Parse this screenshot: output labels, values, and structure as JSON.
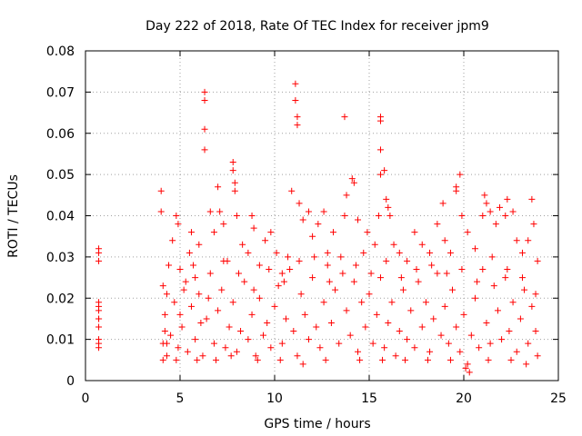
{
  "chart_data": {
    "type": "scatter",
    "title": "Day 222 of 2018, Rate Of TEC Index for receiver jpm9",
    "xlabel": "GPS time / hours",
    "ylabel": "ROTI / TECUs",
    "xlim": [
      0,
      25
    ],
    "ylim": [
      0,
      0.08
    ],
    "x_ticks": [
      0,
      5,
      10,
      15,
      20,
      25
    ],
    "x_tick_labels": [
      "0",
      "5",
      "10",
      "15",
      "20",
      "25"
    ],
    "y_ticks": [
      0,
      0.01,
      0.02,
      0.03,
      0.04,
      0.05,
      0.06,
      0.07,
      0.08
    ],
    "y_tick_labels": [
      "0",
      "0.01",
      "0.02",
      "0.03",
      "0.04",
      "0.05",
      "0.06",
      "0.07",
      "0.08"
    ],
    "grid": true,
    "marker": "+",
    "color": "#ff0000",
    "series": [
      {
        "name": "ROTI",
        "points": [
          [
            0.7,
            0.032
          ],
          [
            0.7,
            0.031
          ],
          [
            0.7,
            0.029
          ],
          [
            0.7,
            0.019
          ],
          [
            0.7,
            0.018
          ],
          [
            0.7,
            0.017
          ],
          [
            0.7,
            0.015
          ],
          [
            0.7,
            0.015
          ],
          [
            0.7,
            0.013
          ],
          [
            0.7,
            0.01
          ],
          [
            0.7,
            0.009
          ],
          [
            0.7,
            0.008
          ],
          [
            4.0,
            0.046
          ],
          [
            4.0,
            0.041
          ],
          [
            4.1,
            0.023
          ],
          [
            4.2,
            0.012
          ],
          [
            4.3,
            0.009
          ],
          [
            4.4,
            0.028
          ],
          [
            4.6,
            0.034
          ],
          [
            4.8,
            0.04
          ],
          [
            4.9,
            0.038
          ],
          [
            5.0,
            0.027
          ],
          [
            5.2,
            0.022
          ],
          [
            5.5,
            0.031
          ],
          [
            5.6,
            0.036
          ],
          [
            5.8,
            0.025
          ],
          [
            6.0,
            0.033
          ],
          [
            6.1,
            0.014
          ],
          [
            6.3,
            0.07
          ],
          [
            6.3,
            0.068
          ],
          [
            6.3,
            0.061
          ],
          [
            6.3,
            0.056
          ],
          [
            6.6,
            0.041
          ],
          [
            6.8,
            0.036
          ],
          [
            7.0,
            0.047
          ],
          [
            7.1,
            0.041
          ],
          [
            7.3,
            0.038
          ],
          [
            7.5,
            0.029
          ],
          [
            7.8,
            0.053
          ],
          [
            7.8,
            0.051
          ],
          [
            7.9,
            0.048
          ],
          [
            7.9,
            0.046
          ],
          [
            8.0,
            0.04
          ],
          [
            8.3,
            0.033
          ],
          [
            8.6,
            0.031
          ],
          [
            8.8,
            0.04
          ],
          [
            8.9,
            0.037
          ],
          [
            9.2,
            0.028
          ],
          [
            9.5,
            0.034
          ],
          [
            9.8,
            0.036
          ],
          [
            10.1,
            0.031
          ],
          [
            10.4,
            0.026
          ],
          [
            10.7,
            0.03
          ],
          [
            10.9,
            0.046
          ],
          [
            11.1,
            0.072
          ],
          [
            11.1,
            0.068
          ],
          [
            11.2,
            0.064
          ],
          [
            11.2,
            0.062
          ],
          [
            11.3,
            0.043
          ],
          [
            11.5,
            0.039
          ],
          [
            11.8,
            0.041
          ],
          [
            12.0,
            0.035
          ],
          [
            12.3,
            0.038
          ],
          [
            12.6,
            0.041
          ],
          [
            12.8,
            0.031
          ],
          [
            13.1,
            0.036
          ],
          [
            13.7,
            0.064
          ],
          [
            13.8,
            0.045
          ],
          [
            13.7,
            0.04
          ],
          [
            14.1,
            0.049
          ],
          [
            14.2,
            0.048
          ],
          [
            14.4,
            0.039
          ],
          [
            14.7,
            0.031
          ],
          [
            14.9,
            0.036
          ],
          [
            15.3,
            0.033
          ],
          [
            15.5,
            0.04
          ],
          [
            15.6,
            0.064
          ],
          [
            15.6,
            0.063
          ],
          [
            15.6,
            0.056
          ],
          [
            15.6,
            0.05
          ],
          [
            15.8,
            0.051
          ],
          [
            15.9,
            0.044
          ],
          [
            16.0,
            0.042
          ],
          [
            16.1,
            0.04
          ],
          [
            16.3,
            0.033
          ],
          [
            16.6,
            0.031
          ],
          [
            17.0,
            0.029
          ],
          [
            17.4,
            0.036
          ],
          [
            17.8,
            0.033
          ],
          [
            18.2,
            0.031
          ],
          [
            18.6,
            0.038
          ],
          [
            18.9,
            0.043
          ],
          [
            19.0,
            0.034
          ],
          [
            19.3,
            0.031
          ],
          [
            19.6,
            0.047
          ],
          [
            19.6,
            0.046
          ],
          [
            19.8,
            0.05
          ],
          [
            19.9,
            0.04
          ],
          [
            20.2,
            0.036
          ],
          [
            20.6,
            0.032
          ],
          [
            21.0,
            0.04
          ],
          [
            21.1,
            0.045
          ],
          [
            21.2,
            0.043
          ],
          [
            21.4,
            0.041
          ],
          [
            21.7,
            0.038
          ],
          [
            21.9,
            0.042
          ],
          [
            22.2,
            0.04
          ],
          [
            22.3,
            0.044
          ],
          [
            22.6,
            0.041
          ],
          [
            22.8,
            0.034
          ],
          [
            23.1,
            0.031
          ],
          [
            23.4,
            0.034
          ],
          [
            23.6,
            0.044
          ],
          [
            23.7,
            0.038
          ],
          [
            23.9,
            0.029
          ],
          [
            4.1,
            0.009
          ],
          [
            4.2,
            0.016
          ],
          [
            4.3,
            0.006
          ],
          [
            4.5,
            0.011
          ],
          [
            4.7,
            0.019
          ],
          [
            4.9,
            0.008
          ],
          [
            5.1,
            0.013
          ],
          [
            5.3,
            0.024
          ],
          [
            5.4,
            0.007
          ],
          [
            5.6,
            0.018
          ],
          [
            5.8,
            0.01
          ],
          [
            6.0,
            0.021
          ],
          [
            6.2,
            0.006
          ],
          [
            6.4,
            0.015
          ],
          [
            6.6,
            0.026
          ],
          [
            6.8,
            0.009
          ],
          [
            7.0,
            0.017
          ],
          [
            7.2,
            0.022
          ],
          [
            7.4,
            0.008
          ],
          [
            7.6,
            0.013
          ],
          [
            7.8,
            0.019
          ],
          [
            8.0,
            0.007
          ],
          [
            8.2,
            0.012
          ],
          [
            8.4,
            0.024
          ],
          [
            8.6,
            0.01
          ],
          [
            8.8,
            0.016
          ],
          [
            9.0,
            0.006
          ],
          [
            9.2,
            0.02
          ],
          [
            9.4,
            0.011
          ],
          [
            9.6,
            0.014
          ],
          [
            9.8,
            0.008
          ],
          [
            10.0,
            0.018
          ],
          [
            10.2,
            0.023
          ],
          [
            10.4,
            0.009
          ],
          [
            10.6,
            0.015
          ],
          [
            10.8,
            0.027
          ],
          [
            11.0,
            0.012
          ],
          [
            11.2,
            0.006
          ],
          [
            11.4,
            0.021
          ],
          [
            11.6,
            0.016
          ],
          [
            11.8,
            0.01
          ],
          [
            12.0,
            0.025
          ],
          [
            12.2,
            0.013
          ],
          [
            12.4,
            0.008
          ],
          [
            12.6,
            0.019
          ],
          [
            12.8,
            0.028
          ],
          [
            13.0,
            0.014
          ],
          [
            13.2,
            0.022
          ],
          [
            13.4,
            0.009
          ],
          [
            13.6,
            0.026
          ],
          [
            13.8,
            0.017
          ],
          [
            14.0,
            0.011
          ],
          [
            14.2,
            0.024
          ],
          [
            14.4,
            0.007
          ],
          [
            14.6,
            0.019
          ],
          [
            14.8,
            0.013
          ],
          [
            15.0,
            0.021
          ],
          [
            15.2,
            0.009
          ],
          [
            15.4,
            0.016
          ],
          [
            15.6,
            0.025
          ],
          [
            15.8,
            0.008
          ],
          [
            16.0,
            0.014
          ],
          [
            16.2,
            0.019
          ],
          [
            16.4,
            0.006
          ],
          [
            16.6,
            0.012
          ],
          [
            16.8,
            0.022
          ],
          [
            17.0,
            0.01
          ],
          [
            17.2,
            0.017
          ],
          [
            17.4,
            0.008
          ],
          [
            17.6,
            0.024
          ],
          [
            17.8,
            0.013
          ],
          [
            18.0,
            0.019
          ],
          [
            18.2,
            0.007
          ],
          [
            18.4,
            0.015
          ],
          [
            18.6,
            0.026
          ],
          [
            18.8,
            0.011
          ],
          [
            19.0,
            0.018
          ],
          [
            19.2,
            0.009
          ],
          [
            19.4,
            0.022
          ],
          [
            19.6,
            0.013
          ],
          [
            19.8,
            0.007
          ],
          [
            20.0,
            0.016
          ],
          [
            20.2,
            0.004
          ],
          [
            20.4,
            0.011
          ],
          [
            20.6,
            0.02
          ],
          [
            20.8,
            0.008
          ],
          [
            21.0,
            0.027
          ],
          [
            21.2,
            0.014
          ],
          [
            21.4,
            0.009
          ],
          [
            21.6,
            0.023
          ],
          [
            21.8,
            0.017
          ],
          [
            22.0,
            0.01
          ],
          [
            22.2,
            0.025
          ],
          [
            22.4,
            0.012
          ],
          [
            22.6,
            0.019
          ],
          [
            22.8,
            0.007
          ],
          [
            23.0,
            0.015
          ],
          [
            23.2,
            0.022
          ],
          [
            23.4,
            0.009
          ],
          [
            23.6,
            0.018
          ],
          [
            23.8,
            0.012
          ],
          [
            23.9,
            0.006
          ],
          [
            4.3,
            0.021
          ],
          [
            5.0,
            0.016
          ],
          [
            5.7,
            0.028
          ],
          [
            6.5,
            0.02
          ],
          [
            7.3,
            0.029
          ],
          [
            8.1,
            0.026
          ],
          [
            8.9,
            0.022
          ],
          [
            9.7,
            0.027
          ],
          [
            10.5,
            0.024
          ],
          [
            11.3,
            0.029
          ],
          [
            12.1,
            0.03
          ],
          [
            12.9,
            0.024
          ],
          [
            13.5,
            0.03
          ],
          [
            14.3,
            0.028
          ],
          [
            15.1,
            0.026
          ],
          [
            15.9,
            0.029
          ],
          [
            16.7,
            0.025
          ],
          [
            17.5,
            0.027
          ],
          [
            18.3,
            0.028
          ],
          [
            19.1,
            0.026
          ],
          [
            19.9,
            0.027
          ],
          [
            20.7,
            0.024
          ],
          [
            21.5,
            0.03
          ],
          [
            22.3,
            0.027
          ],
          [
            23.1,
            0.025
          ],
          [
            23.8,
            0.021
          ],
          [
            4.1,
            0.005
          ],
          [
            4.8,
            0.005
          ],
          [
            5.9,
            0.005
          ],
          [
            6.9,
            0.005
          ],
          [
            7.7,
            0.006
          ],
          [
            9.1,
            0.005
          ],
          [
            10.3,
            0.005
          ],
          [
            11.5,
            0.004
          ],
          [
            12.7,
            0.005
          ],
          [
            14.5,
            0.005
          ],
          [
            15.7,
            0.005
          ],
          [
            16.9,
            0.005
          ],
          [
            18.1,
            0.005
          ],
          [
            19.3,
            0.005
          ],
          [
            20.1,
            0.003
          ],
          [
            20.3,
            0.002
          ],
          [
            21.3,
            0.005
          ],
          [
            22.5,
            0.005
          ],
          [
            23.3,
            0.004
          ]
        ]
      }
    ]
  }
}
